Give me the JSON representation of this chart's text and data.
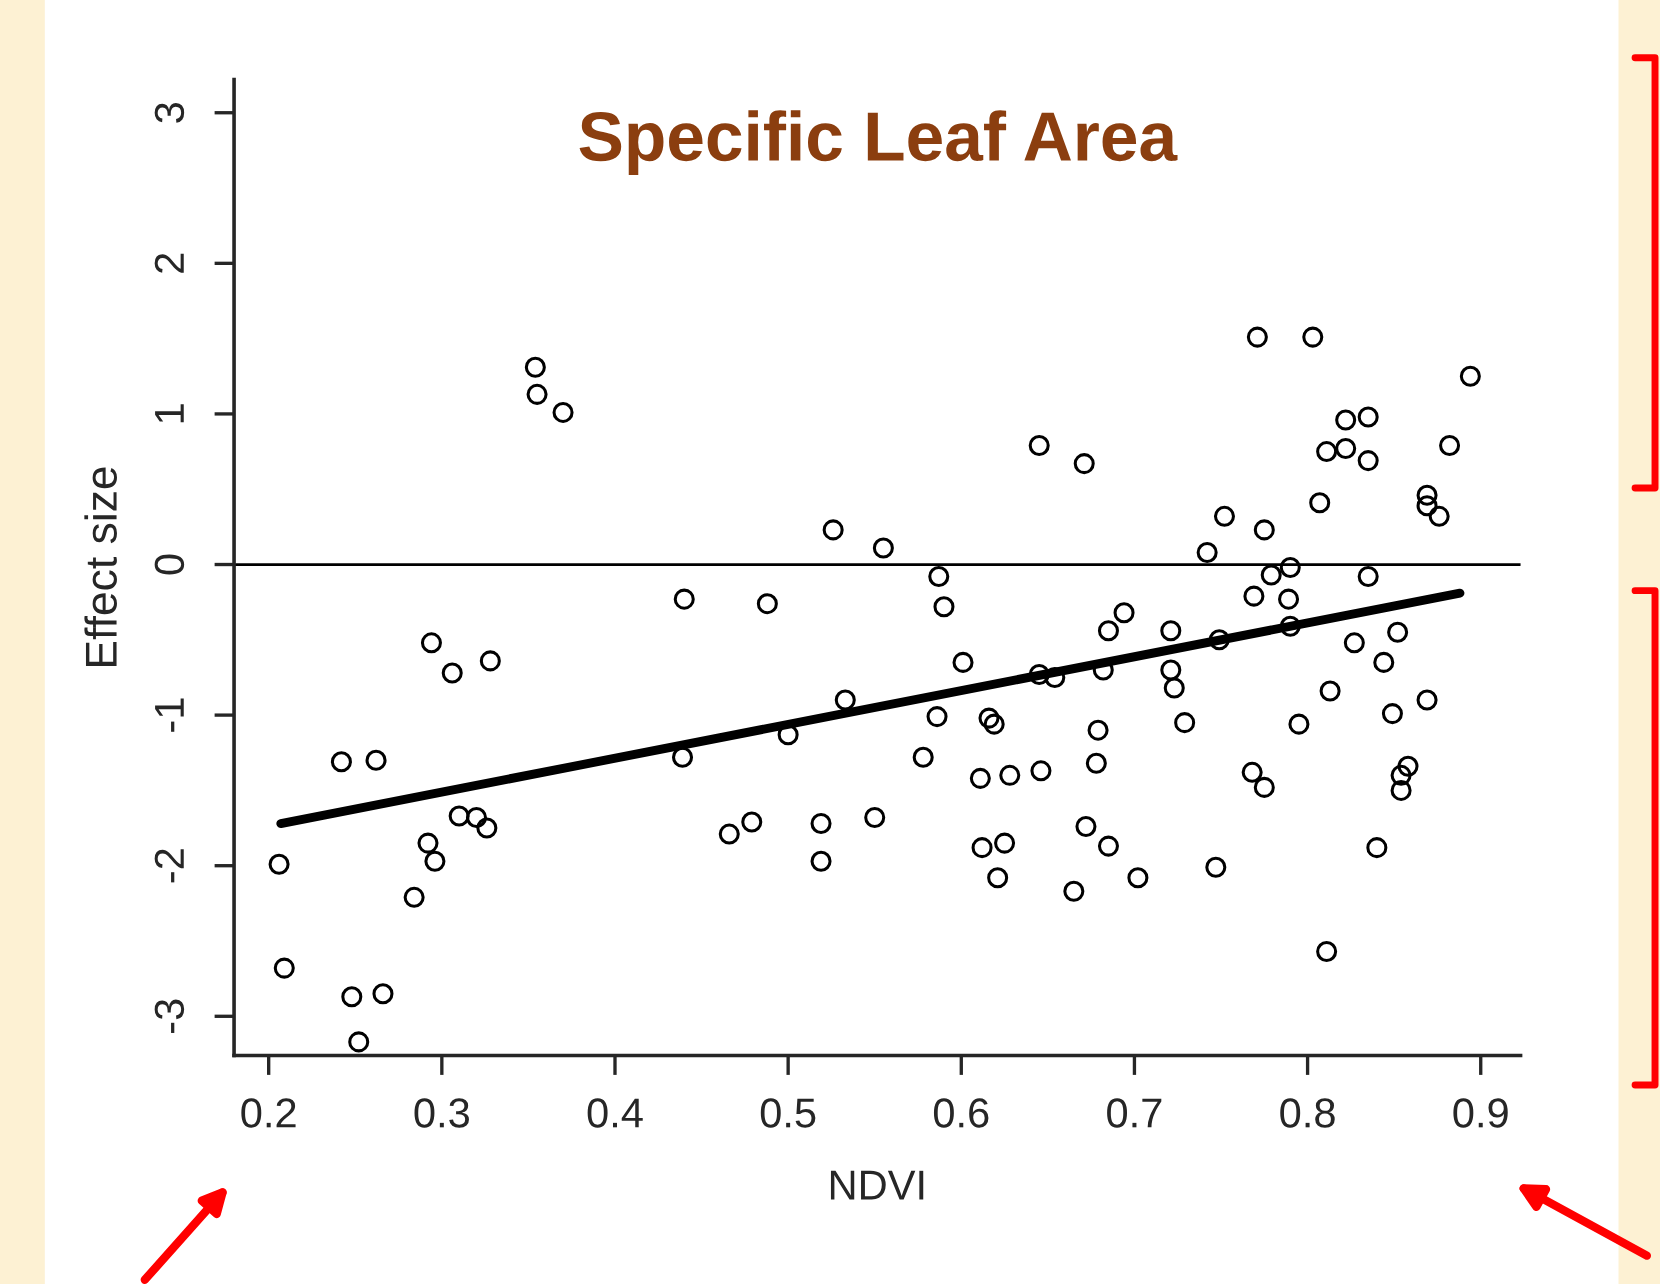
{
  "chart_data": {
    "type": "scatter",
    "title": "Specific Leaf Area",
    "xlabel": "NDVI",
    "ylabel": "Effect size",
    "xlim": [
      0.18,
      0.923
    ],
    "ylim": [
      -3.26,
      3.22
    ],
    "xticks": [
      0.2,
      0.3,
      0.4,
      0.5,
      0.6,
      0.7,
      0.8,
      0.9
    ],
    "yticks": [
      -3,
      -2,
      -1,
      0,
      1,
      2,
      3
    ],
    "grid": false,
    "marker": "circle",
    "ref_lines": [
      {
        "axis": "y",
        "value": 0,
        "color": "#000000"
      }
    ],
    "series": [
      {
        "color": "#000000",
        "x": [
          0.206,
          0.209,
          0.242,
          0.248,
          0.252,
          0.262,
          0.266,
          0.284,
          0.292,
          0.296,
          0.294,
          0.306,
          0.31,
          0.32,
          0.326,
          0.328,
          0.354,
          0.355,
          0.37,
          0.44,
          0.488,
          0.526,
          0.555,
          0.533,
          0.439,
          0.5,
          0.466,
          0.479,
          0.519,
          0.519,
          0.55,
          0.587,
          0.59,
          0.601,
          0.645,
          0.671,
          0.694,
          0.685,
          0.721,
          0.721,
          0.723,
          0.682,
          0.645,
          0.654,
          0.749,
          0.742,
          0.752,
          0.775,
          0.771,
          0.803,
          0.894,
          0.822,
          0.835,
          0.811,
          0.822,
          0.835,
          0.882,
          0.807,
          0.869,
          0.869,
          0.876,
          0.779,
          0.79,
          0.769,
          0.789,
          0.835,
          0.79,
          0.827,
          0.852,
          0.844,
          0.813,
          0.869,
          0.849,
          0.586,
          0.616,
          0.619,
          0.679,
          0.729,
          0.795,
          0.578,
          0.611,
          0.628,
          0.646,
          0.678,
          0.768,
          0.775,
          0.858,
          0.854,
          0.854,
          0.612,
          0.625,
          0.621,
          0.672,
          0.685,
          0.665,
          0.702,
          0.747,
          0.84,
          0.811
        ],
        "values": [
          -1.99,
          -2.68,
          -1.31,
          -2.87,
          -3.17,
          -1.3,
          -2.85,
          -2.21,
          -1.85,
          -1.97,
          -0.52,
          -0.72,
          -1.67,
          -1.68,
          -1.75,
          -0.64,
          1.31,
          1.13,
          1.01,
          -0.23,
          -0.26,
          0.23,
          0.11,
          -0.9,
          -1.28,
          -1.13,
          -1.79,
          -1.71,
          -1.72,
          -1.97,
          -1.68,
          -0.08,
          -0.28,
          -0.65,
          0.79,
          0.67,
          -0.32,
          -0.44,
          -0.44,
          -0.7,
          -0.82,
          -0.7,
          -0.73,
          -0.75,
          -0.5,
          0.08,
          0.32,
          0.23,
          1.51,
          1.51,
          1.25,
          0.96,
          0.98,
          0.75,
          0.77,
          0.69,
          0.79,
          0.41,
          0.46,
          0.39,
          0.32,
          -0.07,
          -0.02,
          -0.21,
          -0.23,
          -0.08,
          -0.41,
          -0.52,
          -0.45,
          -0.65,
          -0.84,
          -0.9,
          -0.99,
          -1.01,
          -1.02,
          -1.06,
          -1.1,
          -1.05,
          -1.06,
          -1.28,
          -1.42,
          -1.4,
          -1.37,
          -1.32,
          -1.38,
          -1.48,
          -1.34,
          -1.4,
          -1.5,
          -1.88,
          -1.85,
          -2.08,
          -1.74,
          -1.87,
          -2.17,
          -2.08,
          -2.01,
          -1.88,
          -2.57
        ]
      },
      {
        "type": "line",
        "color": "#000000",
        "marker": "none",
        "line_style": "solid",
        "x": [
          0.207,
          0.888
        ],
        "values": [
          -1.72,
          -0.19
        ]
      }
    ]
  }
}
